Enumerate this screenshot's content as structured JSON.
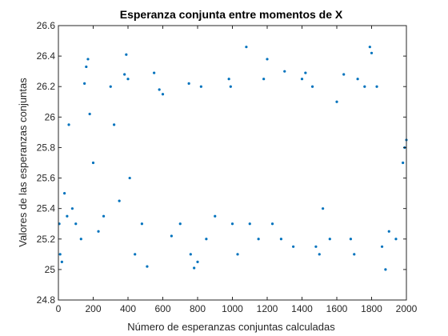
{
  "chart_data": {
    "type": "scatter",
    "title": "Esperanza conjunta entre momentos de X",
    "xlabel": "Número de esperanzas conjuntas calculadas",
    "ylabel": "Valores de las esperanzas conjuntas",
    "xlim": [
      0,
      2000
    ],
    "ylim": [
      24.8,
      26.6
    ],
    "xticks": [
      0,
      200,
      400,
      600,
      800,
      1000,
      1200,
      1400,
      1600,
      1800,
      2000
    ],
    "xtick_labels": [
      "0",
      "200",
      "400",
      "600",
      "800",
      "1000",
      "1200",
      "1400",
      "1600",
      "1800",
      "2000"
    ],
    "yticks": [
      24.8,
      25,
      25.2,
      25.4,
      25.6,
      25.8,
      26,
      26.2,
      26.4,
      26.6
    ],
    "ytick_labels": [
      "24.8",
      "25",
      "25.2",
      "25.4",
      "25.6",
      "25.8",
      "26",
      "26.2",
      "26.4",
      "26.6"
    ],
    "grid": false,
    "marker_color": "#0072BD",
    "points": [
      [
        5,
        25.3
      ],
      [
        10,
        25.1
      ],
      [
        20,
        25.05
      ],
      [
        35,
        25.5
      ],
      [
        50,
        25.35
      ],
      [
        60,
        25.95
      ],
      [
        80,
        25.4
      ],
      [
        100,
        25.3
      ],
      [
        130,
        25.2
      ],
      [
        150,
        26.22
      ],
      [
        160,
        26.33
      ],
      [
        170,
        26.38
      ],
      [
        180,
        26.02
      ],
      [
        200,
        25.7
      ],
      [
        230,
        25.25
      ],
      [
        260,
        25.35
      ],
      [
        300,
        26.2
      ],
      [
        320,
        25.95
      ],
      [
        350,
        25.45
      ],
      [
        380,
        26.28
      ],
      [
        390,
        26.41
      ],
      [
        400,
        26.25
      ],
      [
        410,
        25.6
      ],
      [
        440,
        25.1
      ],
      [
        480,
        25.3
      ],
      [
        510,
        25.02
      ],
      [
        550,
        26.29
      ],
      [
        580,
        26.18
      ],
      [
        600,
        26.15
      ],
      [
        650,
        25.22
      ],
      [
        700,
        25.3
      ],
      [
        750,
        26.22
      ],
      [
        760,
        25.1
      ],
      [
        780,
        25.01
      ],
      [
        800,
        25.05
      ],
      [
        820,
        26.2
      ],
      [
        850,
        25.2
      ],
      [
        900,
        25.35
      ],
      [
        980,
        26.25
      ],
      [
        990,
        26.2
      ],
      [
        1000,
        25.3
      ],
      [
        1030,
        25.1
      ],
      [
        1080,
        26.46
      ],
      [
        1100,
        25.3
      ],
      [
        1150,
        25.2
      ],
      [
        1180,
        26.25
      ],
      [
        1200,
        26.38
      ],
      [
        1230,
        25.3
      ],
      [
        1280,
        25.2
      ],
      [
        1300,
        26.3
      ],
      [
        1350,
        25.15
      ],
      [
        1400,
        26.25
      ],
      [
        1420,
        26.29
      ],
      [
        1460,
        26.2
      ],
      [
        1480,
        25.15
      ],
      [
        1500,
        25.1
      ],
      [
        1520,
        25.4
      ],
      [
        1560,
        25.2
      ],
      [
        1600,
        26.1
      ],
      [
        1640,
        26.28
      ],
      [
        1680,
        25.2
      ],
      [
        1700,
        25.1
      ],
      [
        1720,
        26.25
      ],
      [
        1760,
        26.2
      ],
      [
        1790,
        26.46
      ],
      [
        1800,
        26.42
      ],
      [
        1830,
        26.2
      ],
      [
        1860,
        25.15
      ],
      [
        1880,
        25.0
      ],
      [
        1900,
        25.25
      ],
      [
        1940,
        25.2
      ],
      [
        1980,
        25.7
      ],
      [
        1990,
        25.8
      ],
      [
        2000,
        25.85
      ]
    ]
  }
}
